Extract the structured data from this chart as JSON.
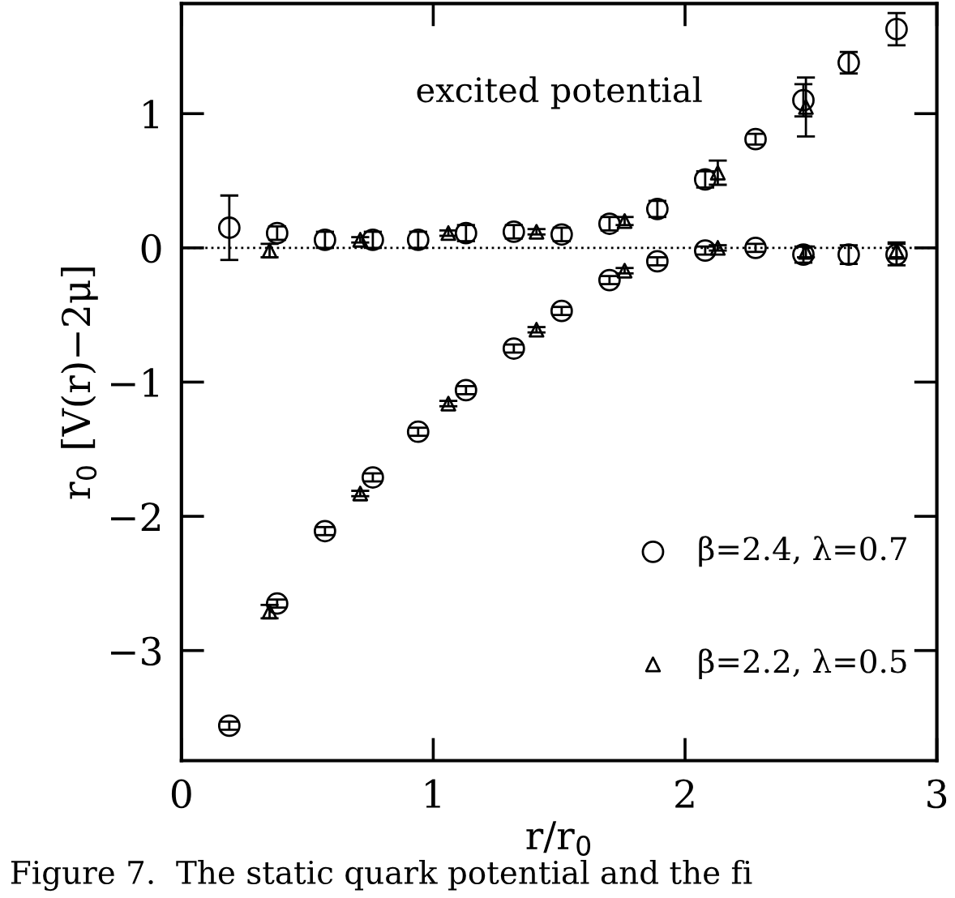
{
  "chart_data": {
    "type": "scatter",
    "xlabel": "r/r$_{0}$",
    "ylabel": "r$_{0}$ [V(r)−2μ]",
    "annotations": [
      "excited potential",
      "Figure 7.  The static quark potential and the fi"
    ],
    "xlim": [
      0,
      3
    ],
    "ylim": [
      -3.82,
      1.82
    ],
    "xticks": [
      0,
      1,
      2,
      3
    ],
    "yticks": [
      -3,
      -2,
      -1,
      0,
      1
    ],
    "ref_lines": [
      {
        "axis": "y",
        "value": 0,
        "line_style": "dotted",
        "color": "#000000"
      }
    ],
    "grid": false,
    "legend": "bottom right",
    "series": [
      {
        "name": "β=2.4, λ=0.7",
        "color": "#000000",
        "marker": "circle",
        "x": [
          0.19,
          0.38,
          0.57,
          0.76,
          0.94,
          1.13,
          1.32,
          1.51,
          1.7,
          1.89,
          2.08,
          2.28,
          2.47,
          2.65,
          2.84,
          0.19,
          0.38,
          0.57,
          0.76,
          0.94,
          1.13,
          1.32,
          1.51,
          1.7,
          1.89,
          2.08,
          2.28,
          2.47,
          2.65,
          2.84
        ],
        "values": [
          -3.56,
          -2.65,
          -2.11,
          -1.71,
          -1.37,
          -1.06,
          -0.75,
          -0.47,
          -0.24,
          -0.1,
          -0.02,
          0.0,
          -0.05,
          -0.05,
          -0.05,
          0.15,
          0.11,
          0.06,
          0.06,
          0.06,
          0.11,
          0.12,
          0.1,
          0.18,
          0.29,
          0.51,
          0.81,
          1.1,
          1.38,
          1.63
        ],
        "errors": [
          0.03,
          0.03,
          0.03,
          0.03,
          0.03,
          0.03,
          0.03,
          0.03,
          0.03,
          0.03,
          0.03,
          0.03,
          0.06,
          0.07,
          0.08,
          0.24,
          0.05,
          0.06,
          0.06,
          0.06,
          0.06,
          0.05,
          0.05,
          0.05,
          0.06,
          0.06,
          0.04,
          0.12,
          0.08,
          0.12
        ]
      },
      {
        "name": "β=2.2, λ=0.5",
        "color": "#000000",
        "marker": "triangle",
        "x": [
          0.35,
          0.71,
          1.06,
          1.41,
          1.76,
          2.13,
          2.48,
          2.84,
          0.35,
          0.71,
          1.06,
          1.41,
          1.76,
          2.13,
          2.48
        ],
        "values": [
          -2.71,
          -1.83,
          -1.16,
          -0.61,
          -0.17,
          0.0,
          -0.03,
          -0.02,
          -0.02,
          0.06,
          0.11,
          0.12,
          0.2,
          0.56,
          1.05
        ],
        "errors": [
          0.05,
          0.02,
          0.02,
          0.02,
          0.02,
          0.02,
          0.04,
          0.06,
          0.05,
          0.02,
          0.02,
          0.02,
          0.03,
          0.09,
          0.22
        ]
      }
    ]
  }
}
